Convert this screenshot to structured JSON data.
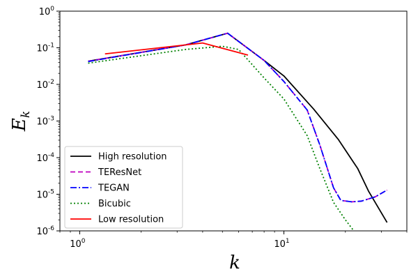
{
  "chart_data": {
    "type": "line",
    "xlabel": "k",
    "ylabel": "E",
    "ylabel_sub": "k",
    "xscale": "log",
    "yscale": "log",
    "xlim": [
      0.8,
      40
    ],
    "ylim": [
      1e-06,
      1
    ],
    "x_ticks": [
      {
        "value": 1,
        "base": "10",
        "exp": "0"
      },
      {
        "value": 10,
        "base": "10",
        "exp": "1"
      }
    ],
    "y_ticks": [
      {
        "value": 1,
        "base": "10",
        "exp": "0"
      },
      {
        "value": 0.1,
        "base": "10",
        "exp": "-1"
      },
      {
        "value": 0.01,
        "base": "10",
        "exp": "-2"
      },
      {
        "value": 0.001,
        "base": "10",
        "exp": "-3"
      },
      {
        "value": 0.0001,
        "base": "10",
        "exp": "-4"
      },
      {
        "value": 1e-05,
        "base": "10",
        "exp": "-5"
      },
      {
        "value": 1e-06,
        "base": "10",
        "exp": "-6"
      }
    ],
    "grid": false,
    "legend_position": "lower-left",
    "series": [
      {
        "name": "High resolution",
        "color": "#000000",
        "dash": "solid",
        "x": [
          1.1,
          3.3,
          5.3,
          8.0,
          10.0,
          14.0,
          18.5,
          23.0,
          26.0,
          32.0
        ],
        "y": [
          0.043,
          0.12,
          0.25,
          0.045,
          0.017,
          0.0021,
          0.00031,
          5e-05,
          1.2e-05,
          1.7e-06
        ]
      },
      {
        "name": "TEResNet",
        "color": "#bf00bf",
        "dash": "dashed",
        "x": [
          1.1,
          3.3,
          5.3,
          8.0,
          10.0,
          13.0,
          15.0,
          17.5,
          19.0,
          21.5,
          24.0,
          28.0,
          32.0
        ],
        "y": [
          0.043,
          0.12,
          0.25,
          0.045,
          0.012,
          0.002,
          0.00022,
          1.5e-05,
          6.8e-06,
          6.2e-06,
          6.5e-06,
          8.5e-06,
          1.3e-05
        ]
      },
      {
        "name": "TEGAN",
        "color": "#0000ff",
        "dash": "dashdot",
        "x": [
          1.1,
          3.3,
          5.3,
          8.0,
          10.0,
          13.0,
          15.0,
          17.5,
          19.0,
          21.5,
          24.0,
          28.0,
          32.0
        ],
        "y": [
          0.042,
          0.12,
          0.25,
          0.045,
          0.012,
          0.002,
          0.00022,
          1.5e-05,
          6.8e-06,
          6.2e-06,
          6.5e-06,
          8.5e-06,
          1.3e-05
        ]
      },
      {
        "name": "Bicubic",
        "color": "#008000",
        "dash": "dotted",
        "x": [
          1.1,
          3.3,
          5.0,
          6.0,
          8.0,
          10.0,
          13.0,
          15.0,
          17.5,
          20.0,
          22.0
        ],
        "y": [
          0.038,
          0.09,
          0.11,
          0.09,
          0.015,
          0.004,
          0.0004,
          5e-05,
          6e-06,
          2e-06,
          1e-06
        ]
      },
      {
        "name": "Low resolution",
        "color": "#ff0000",
        "dash": "solid",
        "x": [
          1.33,
          2.67,
          4.0,
          5.33,
          6.67
        ],
        "y": [
          0.068,
          0.105,
          0.135,
          0.088,
          0.063
        ]
      }
    ]
  }
}
